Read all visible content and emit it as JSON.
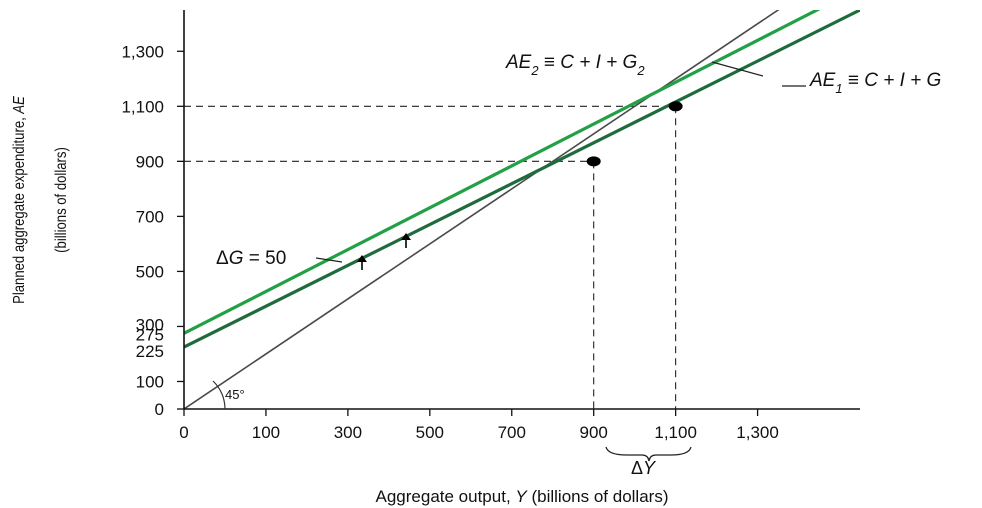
{
  "chart_data": {
    "type": "line",
    "title": "",
    "xlabel_prefix": "Aggregate output,",
    "xlabel_var": "Y",
    "xlabel_suffix": "(billions of dollars)",
    "ylabel_line1_prefix": "Planned aggregate expenditure,",
    "ylabel_line1_var": "AE",
    "ylabel_line2": "(billions of dollars)",
    "xlim": [
      0,
      1650
    ],
    "ylim": [
      0,
      1450
    ],
    "x_ticks": [
      {
        "value": 0,
        "label": "0"
      },
      {
        "value": 200,
        "label": "100"
      },
      {
        "value": 400,
        "label": "300"
      },
      {
        "value": 600,
        "label": "500"
      },
      {
        "value": 800,
        "label": "700"
      },
      {
        "value": 1000,
        "label": "900"
      },
      {
        "value": 1200,
        "label": "1,100"
      },
      {
        "value": 1400,
        "label": "1,300"
      }
    ],
    "y_ticks": [
      {
        "value": 0,
        "label": "0"
      },
      {
        "value": 100,
        "label": "100"
      },
      {
        "value": 225,
        "label": "225"
      },
      {
        "value": 275,
        "label": "275"
      },
      {
        "value": 300,
        "label": "300"
      },
      {
        "value": 500,
        "label": "500"
      },
      {
        "value": 700,
        "label": "700"
      },
      {
        "value": 900,
        "label": "900"
      },
      {
        "value": 1100,
        "label": "1,100"
      },
      {
        "value": 1300,
        "label": "1,300"
      }
    ],
    "series": [
      {
        "name": "45° line",
        "color": "#4a4a4a",
        "points": [
          [
            0,
            0
          ],
          [
            1650,
            1650
          ]
        ]
      },
      {
        "name": "AE1 = C + I + G",
        "color": "#1e6b3c",
        "points": [
          [
            0,
            225
          ],
          [
            1650,
            1450
          ]
        ]
      },
      {
        "name": "AE2 = C + I + G2",
        "color": "#22a046",
        "points": [
          [
            0,
            275
          ],
          [
            1650,
            1530
          ]
        ]
      }
    ],
    "equilibria": [
      {
        "x": 1000,
        "y": 900
      },
      {
        "x": 1200,
        "y": 1100
      }
    ],
    "annotations": {
      "ae2_label": "AE2 ≡ C + I + G2",
      "ae2_parts": {
        "ae": "AE",
        "sub": "2",
        "rest": " ≡ C + I + G",
        "sub2": "2"
      },
      "ae1_parts": {
        "ae": "AE",
        "sub": "1",
        "rest": " ≡ C + I + G"
      },
      "delta_g": "ΔG = 50",
      "delta_g_parts": {
        "delta": "Δ",
        "g": "G",
        "rest": " = 50"
      },
      "delta_y": "ΔY",
      "delta_y_parts": {
        "delta": "Δ",
        "y": "Y"
      },
      "angle": "45°"
    }
  }
}
